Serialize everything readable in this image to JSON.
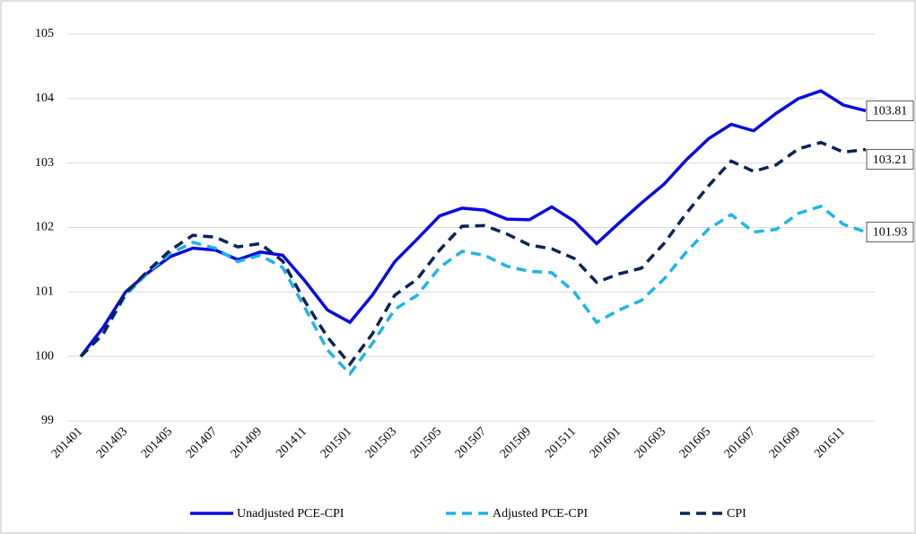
{
  "chart_data": {
    "type": "line",
    "categories": [
      "201401",
      null,
      "201403",
      null,
      "201405",
      null,
      "201407",
      null,
      "201409",
      null,
      "201411",
      null,
      "201501",
      null,
      "201503",
      null,
      "201505",
      null,
      "201507",
      null,
      "201509",
      null,
      "201511",
      null,
      "201601",
      null,
      "201603",
      null,
      "201605",
      null,
      "201607",
      null,
      "201609",
      null,
      "201611",
      null
    ],
    "series": [
      {
        "name": "Unadjusted PCE-CPI",
        "color": "#0a0ae0",
        "dashed": false,
        "values": [
          100,
          100.45,
          101.0,
          101.3,
          101.55,
          101.68,
          101.65,
          101.5,
          101.62,
          101.57,
          101.17,
          100.72,
          100.53,
          100.95,
          101.47,
          101.82,
          102.18,
          102.3,
          102.27,
          102.13,
          102.12,
          102.32,
          102.1,
          101.75,
          102.07,
          102.38,
          102.67,
          103.05,
          103.38,
          103.6,
          103.5,
          103.77,
          104.0,
          104.12,
          103.9,
          103.81
        ]
      },
      {
        "name": "Adjusted PCE-CPI",
        "color": "#1eb4ea",
        "dashed": true,
        "values": [
          100,
          100.35,
          100.95,
          101.3,
          101.6,
          101.77,
          101.68,
          101.47,
          101.57,
          101.38,
          100.75,
          100.1,
          99.73,
          100.2,
          100.73,
          100.95,
          101.38,
          101.63,
          101.57,
          101.4,
          101.32,
          101.3,
          101.0,
          100.53,
          100.72,
          100.87,
          101.2,
          101.62,
          101.98,
          102.2,
          101.93,
          101.97,
          102.22,
          102.33,
          102.05,
          101.93
        ]
      },
      {
        "name": "CPI",
        "color": "#0c2355",
        "dashed": true,
        "values": [
          100,
          100.35,
          100.98,
          101.33,
          101.65,
          101.88,
          101.85,
          101.7,
          101.75,
          101.48,
          100.85,
          100.3,
          99.88,
          100.35,
          100.95,
          101.2,
          101.65,
          102.02,
          102.03,
          101.9,
          101.73,
          101.67,
          101.52,
          101.15,
          101.28,
          101.37,
          101.75,
          102.22,
          102.65,
          103.03,
          102.87,
          102.97,
          103.22,
          103.32,
          103.17,
          103.21
        ]
      }
    ],
    "ylim": [
      99,
      105
    ],
    "yticks": [
      99,
      100,
      101,
      102,
      103,
      104,
      105
    ],
    "grid": true,
    "end_labels": true,
    "legend": "bottom"
  }
}
